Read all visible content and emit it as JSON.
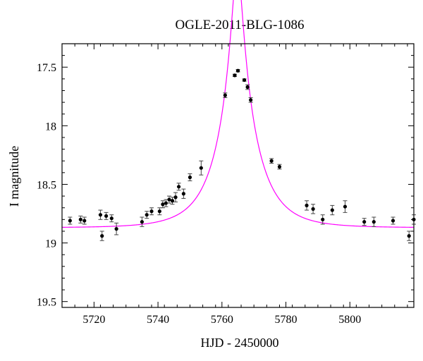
{
  "chart_data": {
    "type": "scatter",
    "title": "OGLE-2011-BLG-1086",
    "xlabel": "HJD - 2450000",
    "ylabel": "I magnitude",
    "xlim": [
      5710,
      5820
    ],
    "ylim": [
      19.55,
      17.3
    ],
    "y_inverted": true,
    "x_ticks": [
      5720,
      5740,
      5760,
      5780,
      5800
    ],
    "y_ticks": [
      17.5,
      18,
      18.5,
      19,
      19.5
    ],
    "grid": false,
    "series": [
      {
        "kind": "data",
        "x": [
          5712.5,
          5715.8,
          5717.0,
          5722.0,
          5722.5,
          5723.8,
          5725.5,
          5727.0,
          5735.0,
          5736.5,
          5738.0,
          5740.5,
          5741.5,
          5742.5,
          5743.5,
          5744.5,
          5745.5,
          5746.5,
          5748.0,
          5750.0,
          5753.5,
          5761.0,
          5764.0,
          5765.0,
          5767.0,
          5768.0,
          5769.0,
          5775.5,
          5778.0,
          5786.5,
          5788.5,
          5791.5,
          5794.5,
          5798.5,
          5804.5,
          5807.5,
          5813.5,
          5818.5,
          5820.0
        ],
        "y": [
          18.81,
          18.8,
          18.81,
          18.76,
          18.94,
          18.77,
          18.79,
          18.88,
          18.82,
          18.76,
          18.73,
          18.73,
          18.67,
          18.66,
          18.63,
          18.64,
          18.61,
          18.52,
          18.58,
          18.44,
          18.36,
          17.74,
          17.57,
          17.53,
          17.61,
          17.67,
          17.78,
          18.3,
          18.35,
          18.68,
          18.71,
          18.8,
          18.72,
          18.69,
          18.82,
          18.82,
          18.81,
          18.94,
          18.8
        ],
        "err": [
          0.03,
          0.03,
          0.03,
          0.04,
          0.04,
          0.03,
          0.03,
          0.05,
          0.04,
          0.03,
          0.03,
          0.03,
          0.03,
          0.03,
          0.03,
          0.03,
          0.04,
          0.03,
          0.04,
          0.03,
          0.06,
          0.02,
          0.01,
          0.01,
          0.01,
          0.02,
          0.02,
          0.02,
          0.02,
          0.04,
          0.04,
          0.04,
          0.04,
          0.05,
          0.03,
          0.04,
          0.03,
          0.04,
          0.04
        ],
        "color": "#000000"
      },
      {
        "kind": "model",
        "t0": 5764.8,
        "u0": 0.13,
        "tE": 11.5,
        "baseline_mag": 18.87,
        "color": "#ff00ff"
      }
    ]
  }
}
